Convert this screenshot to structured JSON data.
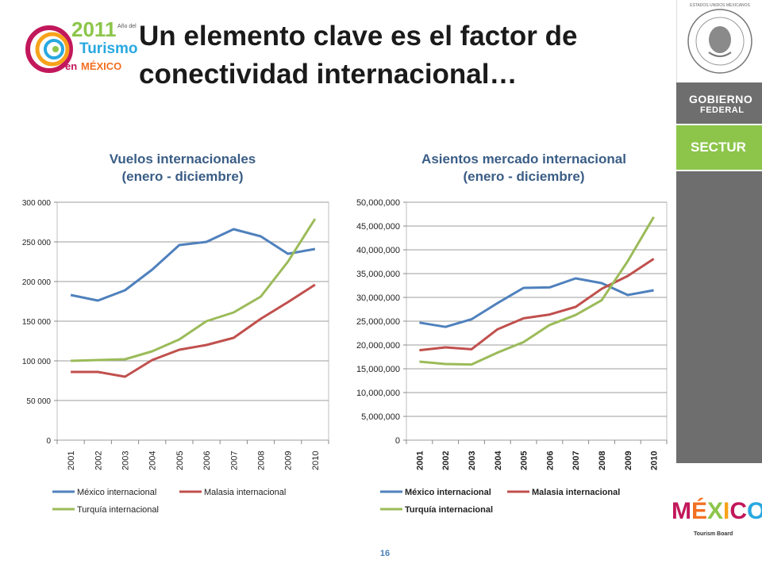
{
  "slide": {
    "title_line1": "Un elemento clave es el factor de",
    "title_line2": "conectividad internacional…",
    "page_number": "16"
  },
  "logo_2011": {
    "year": "2011",
    "line_small": "Año del",
    "line_turismo": "Turismo",
    "line_en": "en",
    "line_mexico": "MÉXICO"
  },
  "right_bar": {
    "gobierno": "GOBIERNO",
    "federal": "FEDERAL",
    "sectur": "SECTUR",
    "seal_text": "ESTADOS UNIDOS MEXICANOS",
    "mexico_brand": "MÉXICO",
    "tourism_board": "Tourism Board"
  },
  "colors": {
    "mexico": "#4f81bd",
    "malasia": "#c0504d",
    "turquia": "#9bbb59",
    "title_blue": "#3a5d85",
    "gray_bar": "#6e6e6e",
    "sectur_green": "#8cc54a"
  },
  "chart_data": [
    {
      "type": "line",
      "title_line1": "Vuelos internacionales",
      "title_line2": "(enero - diciembre)",
      "categories": [
        "2001",
        "2002",
        "2003",
        "2004",
        "2005",
        "2006",
        "2007",
        "2008",
        "2009",
        "2010"
      ],
      "ylim": [
        0,
        300000
      ],
      "yticks": [
        0,
        50000,
        100000,
        150000,
        200000,
        250000,
        300000
      ],
      "ytick_labels": [
        "0",
        "50 000",
        "100 000",
        "150 000",
        "200 000",
        "250 000",
        "300 000"
      ],
      "grid": true,
      "legend": "bottom",
      "series": [
        {
          "name": "México internacional",
          "values": [
            183000,
            176000,
            189000,
            215000,
            246000,
            250000,
            266000,
            257000,
            235000,
            241000
          ]
        },
        {
          "name": "Malasia internacional",
          "values": [
            86000,
            86000,
            80000,
            101000,
            114000,
            120000,
            129000,
            153000,
            174000,
            196000
          ]
        },
        {
          "name": "Turquía internacional",
          "values": [
            100000,
            101000,
            102000,
            112000,
            127000,
            150000,
            161000,
            181000,
            225000,
            279000
          ]
        }
      ]
    },
    {
      "type": "line",
      "title_line1": "Asientos mercado internacional",
      "title_line2": "(enero - diciembre)",
      "categories": [
        "2001",
        "2002",
        "2003",
        "2004",
        "2005",
        "2006",
        "2007",
        "2008",
        "2009",
        "2010"
      ],
      "ylim": [
        0,
        50000000
      ],
      "yticks": [
        0,
        5000000,
        10000000,
        15000000,
        20000000,
        25000000,
        30000000,
        35000000,
        40000000,
        45000000,
        50000000
      ],
      "ytick_labels": [
        "0",
        "5,000,000",
        "10,000,000",
        "15,000,000",
        "20,000,000",
        "25,000,000",
        "30,000,000",
        "35,000,000",
        "40,000,000",
        "45,000,000",
        "50,000,000"
      ],
      "grid": true,
      "legend": "bottom",
      "series": [
        {
          "name": "México internacional",
          "values": [
            24700000,
            23800000,
            25400000,
            28800000,
            32000000,
            32100000,
            34000000,
            33000000,
            30500000,
            31500000
          ]
        },
        {
          "name": "Malasia internacional",
          "values": [
            18900000,
            19500000,
            19100000,
            23300000,
            25600000,
            26400000,
            28000000,
            31800000,
            34500000,
            38100000
          ]
        },
        {
          "name": "Turquía internacional",
          "values": [
            16500000,
            16000000,
            15900000,
            18400000,
            20600000,
            24200000,
            26300000,
            29400000,
            37600000,
            46900000
          ]
        }
      ]
    }
  ]
}
